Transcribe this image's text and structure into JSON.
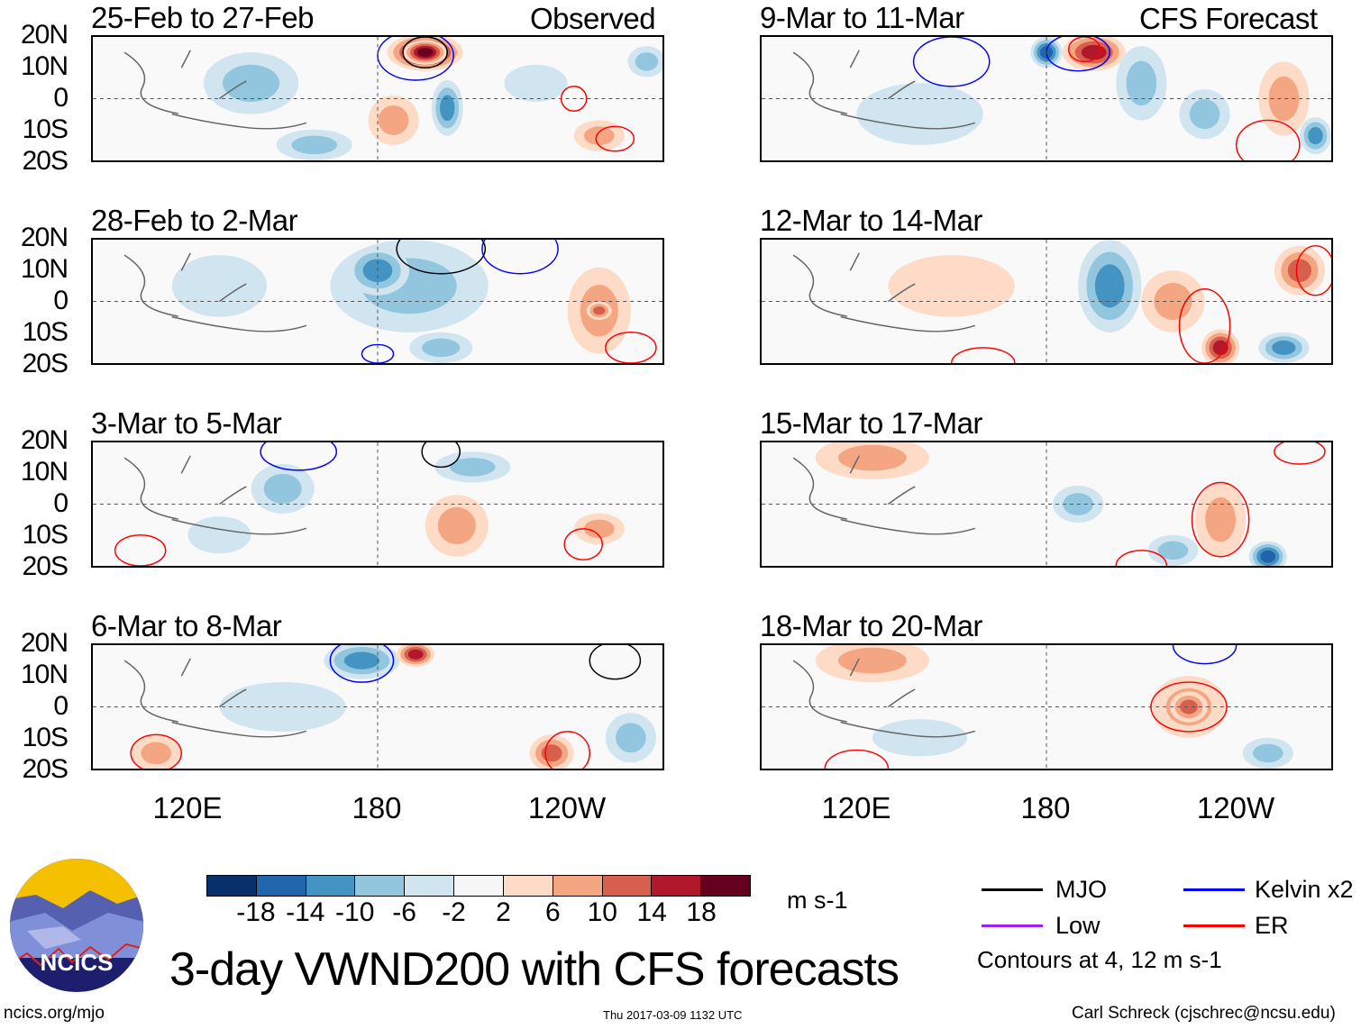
{
  "columns": {
    "left_header": "Observed",
    "right_header": "CFS Forecast"
  },
  "panels": [
    {
      "title": "25-Feb to 27-Feb"
    },
    {
      "title": "9-Mar to 11-Mar"
    },
    {
      "title": "28-Feb to 2-Mar"
    },
    {
      "title": "12-Mar to 14-Mar"
    },
    {
      "title": "3-Mar to 5-Mar"
    },
    {
      "title": "15-Mar to 17-Mar"
    },
    {
      "title": "6-Mar to 8-Mar"
    },
    {
      "title": "18-Mar to 20-Mar"
    }
  ],
  "lat_labels": [
    "20N",
    "10N",
    "0",
    "10S",
    "20S"
  ],
  "lon_labels": [
    "120E",
    "180",
    "120W"
  ],
  "colorbar": {
    "colors": [
      "#08306b",
      "#2166ac",
      "#4393c3",
      "#92c5de",
      "#d1e5f0",
      "#f7f7f7",
      "#fddbc7",
      "#f4a582",
      "#d6604d",
      "#b2182b",
      "#67001f"
    ],
    "labels": [
      "-18",
      "-14",
      "-10",
      "-6",
      "-2",
      "2",
      "6",
      "10",
      "14",
      "18"
    ],
    "units": "m s-1"
  },
  "legend": {
    "items": [
      {
        "label": "MJO",
        "color": "#000000"
      },
      {
        "label": "Kelvin x2",
        "color": "#0000ff"
      },
      {
        "label": "Low",
        "color": "#a020f0"
      },
      {
        "label": "ER",
        "color": "#ff0000"
      }
    ],
    "contours_note": "Contours at 4, 12 m s-1"
  },
  "logo_text": "NCICS",
  "main_title": "3-day VWND200 with CFS forecasts",
  "footer": {
    "url": "ncics.org/mjo",
    "timestamp": "Thu 2017-03-09 1132 UTC",
    "author": "Carl Schreck (cjschrec@ncsu.edu)"
  }
}
